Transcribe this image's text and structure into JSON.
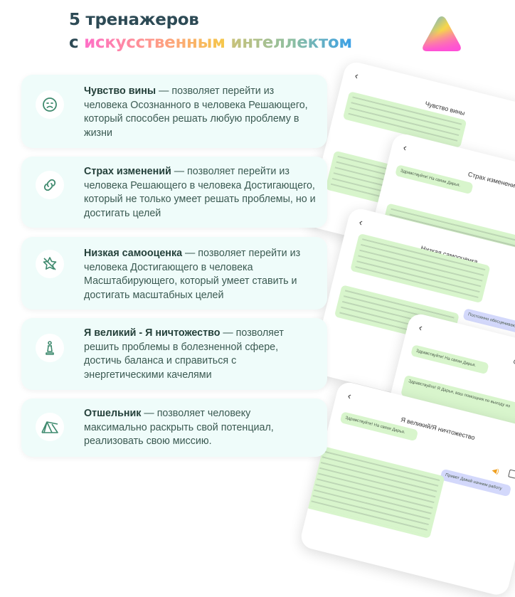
{
  "header": {
    "title_line1": "5 тренажеров",
    "title_prefix": "с",
    "title_word1": "искусственным",
    "title_word2": "интеллектом",
    "logo": "gradient-triangle-logo"
  },
  "colors": {
    "card_bg": "#effcfa",
    "icon": "#3f8a6e",
    "title": "#2d4a55",
    "bubble_bot": "#d8f5cc",
    "bubble_user": "#d3d8fb"
  },
  "trainers": [
    {
      "icon": "sad-face-icon",
      "name": "Чувство вины",
      "desc": " — позволяет перейти из человека Осознанного в человека Решающего, который способен решать любую проблему в жизни"
    },
    {
      "icon": "link-icon",
      "name": "Страх изменений",
      "desc": " — позволяет перейти из человека Решающего в человека Достигающего, который не только умеет решать проблемы, но и достигать целей"
    },
    {
      "icon": "star-off-icon",
      "name": "Низкая самооценка",
      "desc": " — позволяет перейти из человека Достигающего в человека Масштабирующего, который умеет ставить и достигать масштабных целей"
    },
    {
      "icon": "chess-pawn-icon",
      "name": "Я великий - Я ничтожество",
      "desc": " — позволяет решить проблемы в болезненной сфере, достичь баланса и справиться с энергетическими качелями"
    },
    {
      "icon": "tent-icon",
      "name": "Отшельник",
      "desc": " — позволяет человеку максимально раскрыть свой потенциал, реализовать свою миссию."
    }
  ],
  "screens": [
    {
      "title": "Чувство вины"
    },
    {
      "title": "Страх изменений",
      "greeting": "Здравствуйте! На связи Дарья."
    },
    {
      "title": "Низкая самооценка",
      "user_msg": "Постоянно обесцениваю се..."
    },
    {
      "title": "Отшельник",
      "greeting": "Здравствуйте! На связи Дарья.",
      "intro": "Здравствуйте! Я Дарья, ваш помощник по выходу из"
    },
    {
      "title": "Я великий/Я ничтожество",
      "greeting": "Здравствуйте! На связи Дарья.",
      "user_msg": "Привет Давай начнем работу"
    }
  ],
  "back_glyph": "‹"
}
